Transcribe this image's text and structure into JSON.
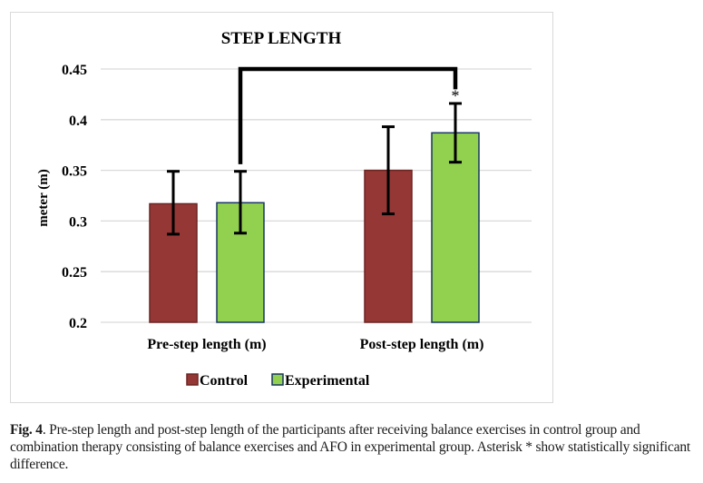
{
  "chart_data": {
    "type": "bar",
    "title": "STEP LENGTH",
    "xlabel": "",
    "ylabel": "meter (m)",
    "ylim": [
      0.2,
      0.45
    ],
    "yticks": [
      "0.2",
      "0.25",
      "0.3",
      "0.35",
      "0.4",
      "0.45"
    ],
    "ytick_values": [
      0.2,
      0.25,
      0.3,
      0.35,
      0.4,
      0.45
    ],
    "grid": true,
    "categories": [
      "Pre-step length (m)",
      "Post-step length (m)"
    ],
    "series": [
      {
        "name": "Control",
        "color": "#953735",
        "edge": "#6b2523",
        "values": [
          0.317,
          0.35
        ],
        "err_high": [
          0.349,
          0.393
        ],
        "err_low": [
          0.287,
          0.307
        ]
      },
      {
        "name": "Experimental",
        "color": "#92d050",
        "edge": "#17375e",
        "values": [
          0.318,
          0.387
        ],
        "err_high": [
          0.349,
          0.416
        ],
        "err_low": [
          0.288,
          0.358
        ]
      }
    ],
    "legend": {
      "position": "bottom",
      "entries": [
        "Control",
        "Experimental"
      ]
    },
    "annotations": [
      {
        "type": "significance-bracket",
        "from": "Pre-step length (m) / Experimental",
        "to": "Post-step length (m) / Experimental",
        "level": 0.45,
        "label": "*"
      }
    ]
  },
  "caption": {
    "label": "Fig. 4",
    "text": ".  Pre-step length and post-step length of the participants after receiving balance exercises in control group and combination therapy consisting of balance exercises and AFO in experimental group. Asterisk * show statistically significant difference."
  }
}
